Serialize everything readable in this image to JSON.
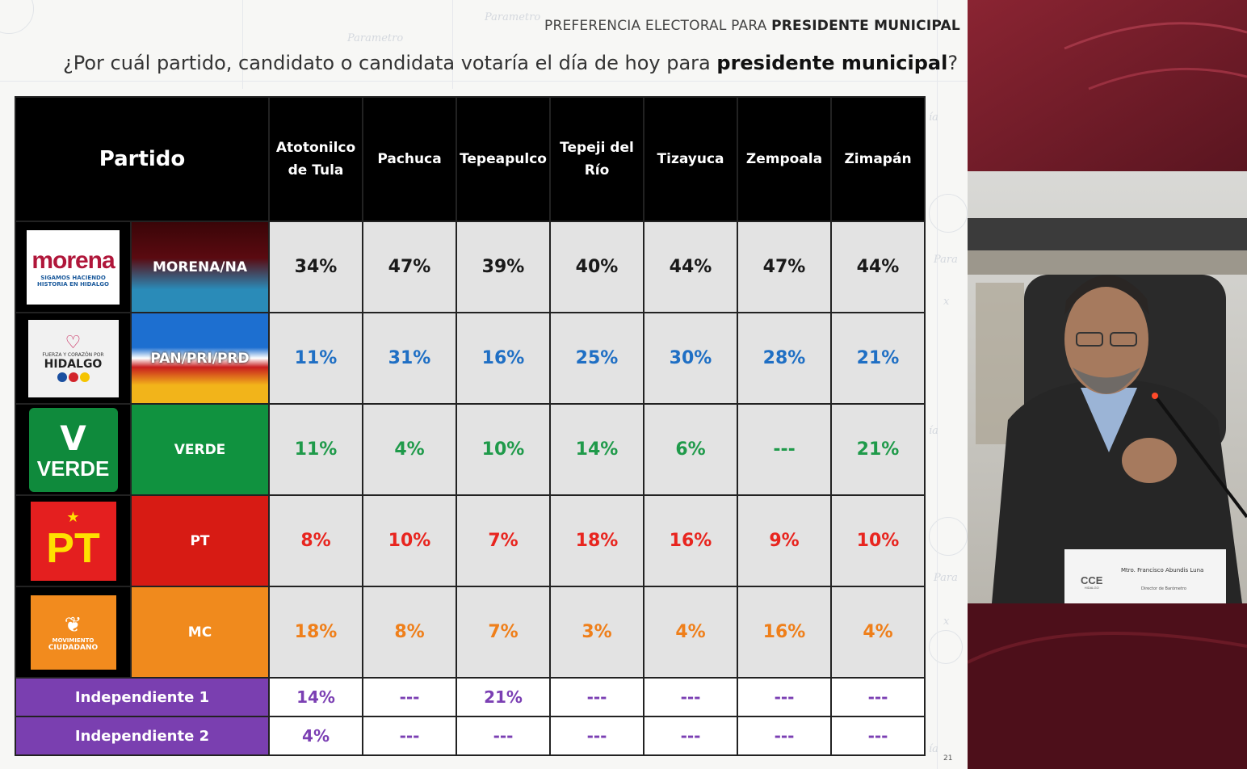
{
  "header": {
    "prefix": "PREFERENCIA ELECTORAL PARA ",
    "emph": "PRESIDENTE MUNICIPAL"
  },
  "question": {
    "prefix": "¿Por cuál partido, candidato o candidata votaría el día de hoy para ",
    "emph": "presidente municipal",
    "suffix": "?"
  },
  "table": {
    "party_header": "Partido",
    "municipalities": [
      [
        "Atotonilco",
        "de Tula"
      ],
      [
        "Pachuca"
      ],
      [
        "Tepeapulco"
      ],
      [
        "Tepeji del",
        "Río"
      ],
      [
        "Tizayuca"
      ],
      [
        "Zempoala"
      ],
      [
        "Zimapán"
      ]
    ],
    "parties": [
      {
        "name": "MORENA/NA",
        "values": [
          "34%",
          "47%",
          "39%",
          "40%",
          "44%",
          "47%",
          "44%"
        ],
        "color": "#1a1a1a",
        "logo": {
          "title": "morena",
          "sub1": "SIGAMOS HACIENDO",
          "sub2": "HISTORIA EN HIDALGO"
        }
      },
      {
        "name": "PAN/PRI/PRD",
        "values": [
          "11%",
          "31%",
          "16%",
          "25%",
          "30%",
          "28%",
          "21%"
        ],
        "color": "#1f6fc4",
        "logo": {
          "small": "FUERZA Y CORAZÓN POR",
          "title": "HIDALGO"
        }
      },
      {
        "name": "VERDE",
        "values": [
          "11%",
          "4%",
          "10%",
          "14%",
          "6%",
          "---",
          "21%"
        ],
        "color": "#1f9a4a",
        "logo": {
          "title": "VERDE"
        }
      },
      {
        "name": "PT",
        "values": [
          "8%",
          "10%",
          "7%",
          "18%",
          "16%",
          "9%",
          "10%"
        ],
        "color": "#e8251f",
        "logo": {
          "title": "PT"
        }
      },
      {
        "name": "MC",
        "values": [
          "18%",
          "8%",
          "7%",
          "3%",
          "4%",
          "16%",
          "4%"
        ],
        "color": "#ef7f1a",
        "logo": {
          "line1": "MOVIMIENTO",
          "line2": "CIUDADANO"
        }
      }
    ],
    "independents": [
      {
        "name": "Independiente 1",
        "values": [
          "14%",
          "---",
          "21%",
          "---",
          "---",
          "---",
          "---"
        ]
      },
      {
        "name": "Independiente 2",
        "values": [
          "4%",
          "---",
          "---",
          "---",
          "---",
          "---",
          "---"
        ]
      }
    ]
  },
  "page_number": "21",
  "video": {
    "nameplate_logo": "CCE",
    "nameplate_logo_sub": "HIDALGO",
    "nameplate_name": "Mtro. Francisco Abundis Luna",
    "nameplate_role": "Director de Barómetro"
  },
  "background_words": [
    "Parametro",
    "Parametro",
    "Para",
    "Para",
    "ía",
    "ía",
    "ía",
    "x",
    "x"
  ]
}
